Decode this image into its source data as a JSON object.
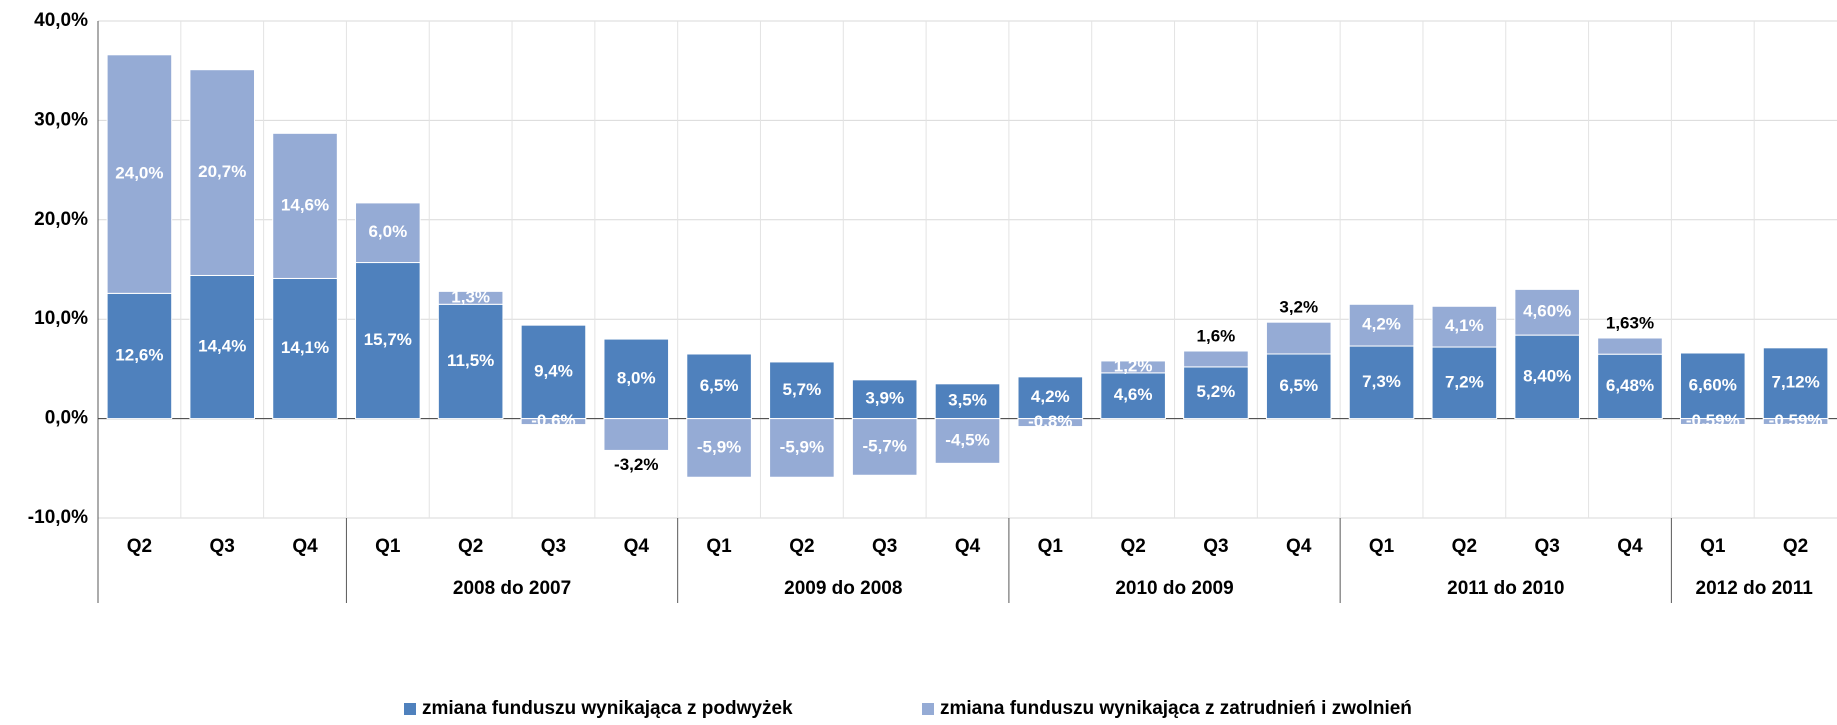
{
  "chart_data": {
    "type": "stacked_bar",
    "categories": [
      "Q2",
      "Q3",
      "Q4",
      "Q1",
      "Q2",
      "Q3",
      "Q4",
      "Q1",
      "Q2",
      "Q3",
      "Q4",
      "Q1",
      "Q2",
      "Q3",
      "Q4",
      "Q1",
      "Q2",
      "Q3",
      "Q4",
      "Q1",
      "Q2"
    ],
    "groups": [
      {
        "name": null,
        "size": 3
      },
      {
        "name": "2008 do 2007",
        "size": 4
      },
      {
        "name": "2009 do 2008",
        "size": 4
      },
      {
        "name": "2010 do 2009",
        "size": 4
      },
      {
        "name": "2011 do 2010",
        "size": 4
      },
      {
        "name": "2012 do 2011",
        "size": 2
      }
    ],
    "series": [
      {
        "name": "zmiana funduszu wynikająca z podwyżek",
        "color": "#4f81bd",
        "values": [
          12.6,
          14.4,
          14.1,
          15.7,
          11.5,
          9.4,
          8.0,
          6.5,
          5.7,
          3.9,
          3.5,
          4.2,
          4.6,
          5.2,
          6.5,
          7.3,
          7.2,
          8.4,
          6.48,
          6.6,
          7.12
        ],
        "value_labels": [
          "12,6%",
          "14,4%",
          "14,1%",
          "15,7%",
          "11,5%",
          "9,4%",
          "8,0%",
          "6,5%",
          "5,7%",
          "3,9%",
          "3,5%",
          "4,2%",
          "4,6%",
          "5,2%",
          "6,5%",
          "7,3%",
          "7,2%",
          "8,40%",
          "6,48%",
          "6,60%",
          "7,12%"
        ]
      },
      {
        "name": "zmiana funduszu wynikająca z zatrudnień i zwolnień",
        "color": "#95abd5",
        "values": [
          24.0,
          20.7,
          14.6,
          6.0,
          1.3,
          -0.6,
          -3.2,
          -5.9,
          -5.9,
          -5.7,
          -4.5,
          -0.8,
          1.2,
          1.6,
          3.2,
          4.2,
          4.1,
          4.6,
          1.63,
          -0.59,
          -0.59
        ],
        "value_labels": [
          "24,0%",
          "20,7%",
          "14,6%",
          "6,0%",
          "1,3%",
          "-0,6%",
          "-3,2%",
          "-5,9%",
          "-5,9%",
          "-5,7%",
          "-4,5%",
          "-0,8%",
          "1,2%",
          "1,6%",
          "3,2%",
          "4,2%",
          "4,1%",
          "4,60%",
          "1,63%",
          "-0,59%",
          "-0,59%"
        ]
      }
    ],
    "ylim": [
      -10,
      40
    ],
    "yticks": [
      {
        "value": -10,
        "label": "-10,0%"
      },
      {
        "value": 0,
        "label": "0,0%"
      },
      {
        "value": 10,
        "label": "10,0%"
      },
      {
        "value": 20,
        "label": "20,0%"
      },
      {
        "value": 30,
        "label": "30,0%"
      },
      {
        "value": 40,
        "label": "40,0%"
      }
    ],
    "grid": true,
    "legend": "bottom"
  }
}
